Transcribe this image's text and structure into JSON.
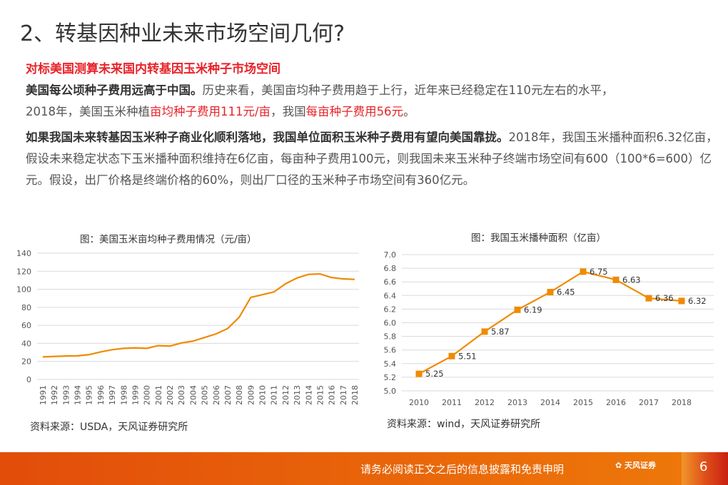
{
  "title": "2、转基因种业未来市场空间几何?",
  "subtitle": "对标美国测算未来国内转基因玉米种子市场空间",
  "p1": {
    "bold": "美国每公顷种子费用远高于中国。",
    "text": "历史来看，美国亩均种子费用趋于上行，近年来已经稳定在110元左右的水平，",
    "line2a": "2018年，美国玉米种植",
    "red1": "亩均种子费用111元/亩",
    "line2b": "，我国",
    "red2": "每亩种子费用56元",
    "line2c": "。"
  },
  "p2": {
    "bold": "如果我国未来转基因玉米种子商业化顺利落地，我国单位面积玉米种子费用有望向美国靠拢。",
    "text": "2018年，我国玉米播种面积6.32亿亩，假设未来稳定状态下玉米播种面积维持在6亿亩，每亩种子费用100元，则我国未来玉米种子终端市场空间有600（100*6=600）亿元。假设，出厂价格是终端价格的60%，则出厂口径的玉米种子市场空间有360亿元。"
  },
  "footer": {
    "disclaimer": "请务必阅读正文之后的信息披露和免责申明",
    "logo": "天风证券",
    "page": "6"
  },
  "chart_data": [
    {
      "type": "line",
      "title": "图：美国玉米亩均种子费用情况（元/亩）",
      "source": "资料来源：USDA，天风证券研究所",
      "color": "#f08a00",
      "categories": [
        "1991",
        "1992",
        "1993",
        "1994",
        "1995",
        "1996",
        "1997",
        "1998",
        "1999",
        "2000",
        "2001",
        "2002",
        "2003",
        "2004",
        "2005",
        "2006",
        "2007",
        "2008",
        "2009",
        "2010",
        "2011",
        "2012",
        "2013",
        "2014",
        "2015",
        "2016",
        "2017",
        "2018"
      ],
      "values": [
        25,
        25.5,
        26,
        26.2,
        27.5,
        30.5,
        33,
        34.5,
        35,
        34.5,
        37.5,
        37,
        40.5,
        42.5,
        46.5,
        50.5,
        56.5,
        69,
        91,
        94,
        97,
        106,
        112.5,
        116.5,
        117,
        113,
        111.5,
        111
      ],
      "ylim": [
        0,
        140
      ],
      "yticks": [
        "0",
        "20",
        "40",
        "60",
        "80",
        "100",
        "120",
        "140"
      ],
      "grid": true
    },
    {
      "type": "line",
      "title": "图：我国玉米播种面积（亿亩）",
      "source": "资料来源：wind，天风证券研究所",
      "color": "#f08a00",
      "categories": [
        "2010",
        "2011",
        "2012",
        "2013",
        "2014",
        "2015",
        "2016",
        "2017",
        "2018"
      ],
      "values": [
        5.25,
        5.51,
        5.87,
        6.19,
        6.45,
        6.75,
        6.63,
        6.36,
        6.32
      ],
      "labels": [
        "5.25",
        "5.51",
        "5.87",
        "6.19",
        "6.45",
        "6.75",
        "6.63",
        "6.36",
        "6.32"
      ],
      "ylim": [
        5.0,
        7.0
      ],
      "yticks": [
        "5.0",
        "5.2",
        "5.4",
        "5.6",
        "5.8",
        "6.0",
        "6.2",
        "6.4",
        "6.6",
        "6.8",
        "7.0"
      ],
      "grid": true
    }
  ]
}
